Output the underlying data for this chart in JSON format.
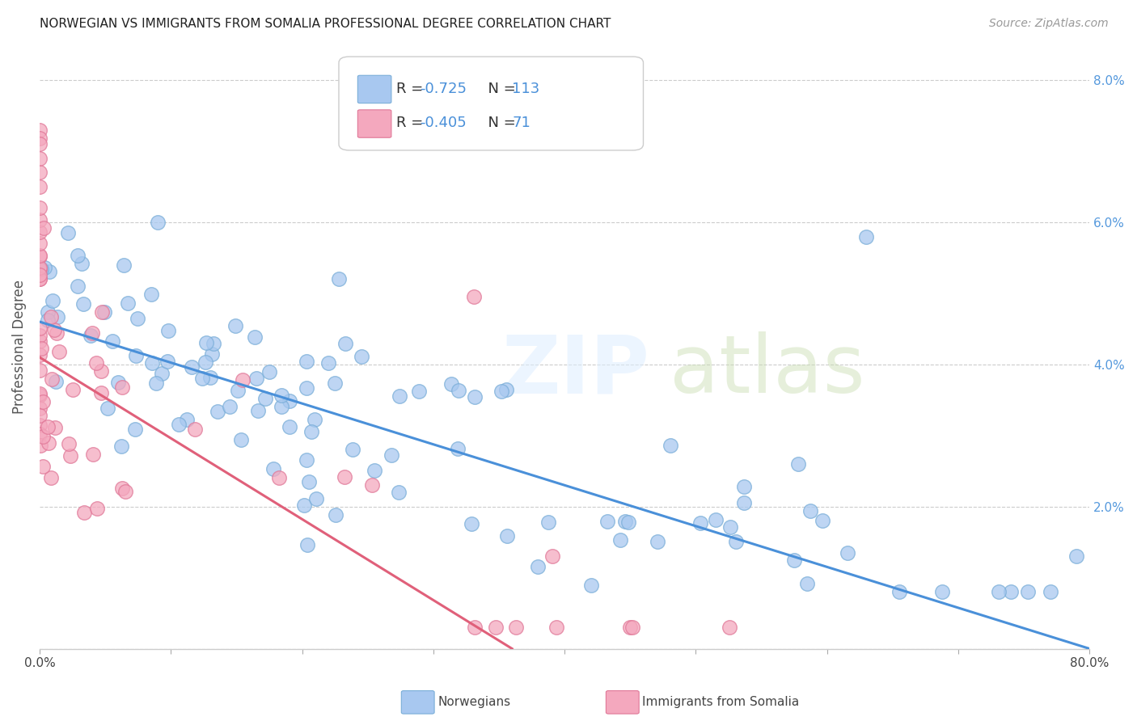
{
  "title": "NORWEGIAN VS IMMIGRANTS FROM SOMALIA PROFESSIONAL DEGREE CORRELATION CHART",
  "source": "Source: ZipAtlas.com",
  "ylabel": "Professional Degree",
  "xlim": [
    0.0,
    0.8
  ],
  "ylim": [
    0.0,
    0.085
  ],
  "norwegian_color": "#a8c8f0",
  "norwegian_edge_color": "#7aaed8",
  "somali_color": "#f4a8be",
  "somali_edge_color": "#e07898",
  "norwegian_line_color": "#4a90d9",
  "somali_line_color": "#e0607a",
  "R_norwegian": -0.725,
  "N_norwegian": 113,
  "R_somali": -0.405,
  "N_somali": 71,
  "legend_label_norwegian": "Norwegians",
  "legend_label_somali": "Immigrants from Somalia",
  "norwegian_trendline_x": [
    0.0,
    0.8
  ],
  "norwegian_trendline_y": [
    0.046,
    0.0
  ],
  "somali_trendline_x": [
    0.0,
    0.36
  ],
  "somali_trendline_y": [
    0.041,
    0.0
  ]
}
